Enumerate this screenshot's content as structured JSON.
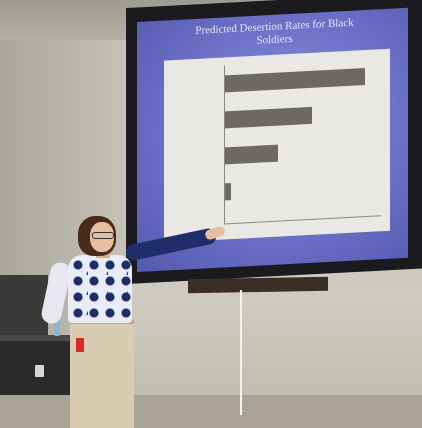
{
  "slide": {
    "title_line1": "Predicted Desertion Rates for Black",
    "title_line2": "Soldiers"
  },
  "chart_data": {
    "type": "bar",
    "orientation": "horizontal",
    "values": [
      0.9,
      0.56,
      0.34,
      0.04
    ],
    "xlim": [
      0,
      1.0
    ],
    "bar_color": "#6b6866"
  }
}
